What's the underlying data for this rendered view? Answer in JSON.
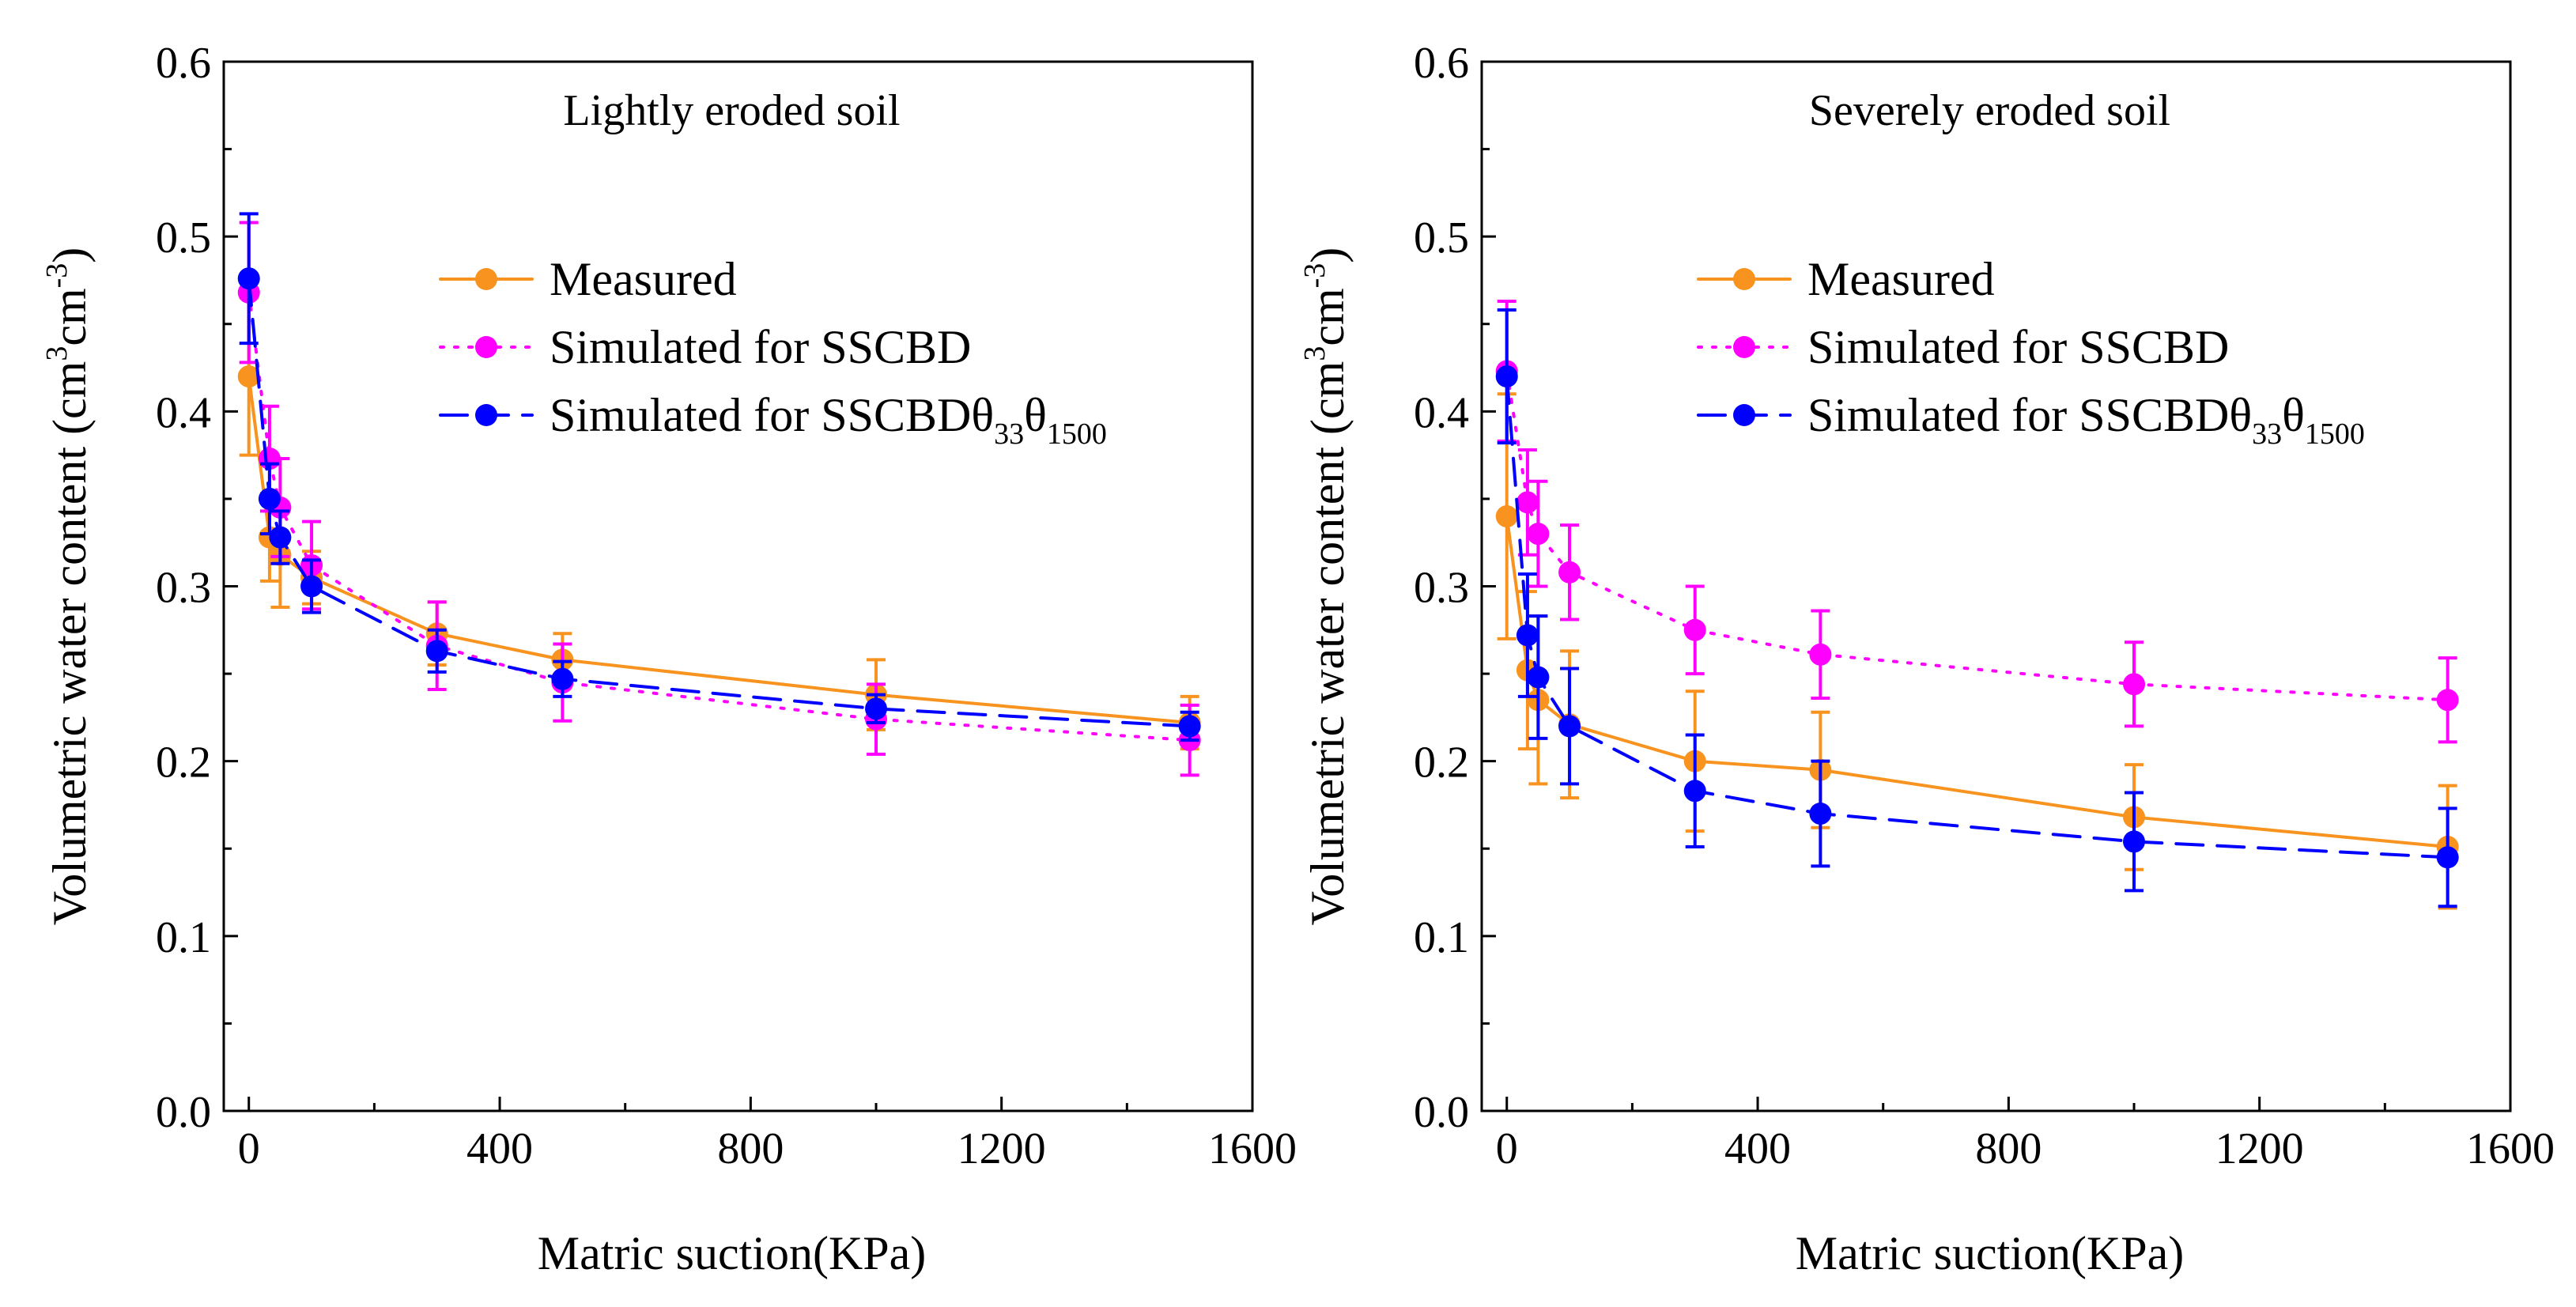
{
  "colors": {
    "measured": "#F7931E",
    "sscbd": "#FF00FF",
    "sscbd_theta": "#0000FF",
    "axis": "#000000"
  },
  "chart_data": [
    {
      "type": "line",
      "title": "Lightly eroded soil",
      "xlabel": "Matric suction(KPa)",
      "ylabel": {
        "main": "Volumetric water content (cm",
        "sup1": "3",
        "mid": "cm",
        "sup2": "-3",
        "end": ")"
      },
      "xlim": [
        -40,
        1600
      ],
      "ylim": [
        0.0,
        0.6
      ],
      "xticks": [
        0,
        400,
        800,
        1200,
        1600
      ],
      "xtick_labels": [
        "0",
        "400",
        "800",
        "1200",
        "1600"
      ],
      "yticks": [
        0.0,
        0.1,
        0.2,
        0.3,
        0.4,
        0.5,
        0.6
      ],
      "ytick_labels": [
        "0.0",
        "0.1",
        "0.2",
        "0.3",
        "0.4",
        "0.5",
        "0.6"
      ],
      "legend": "upper-center",
      "series": [
        {
          "key": "measured",
          "legend": {
            "base": "Measured",
            "sub1": "",
            "mid": "",
            "sub2": ""
          },
          "line_style": "solid",
          "x": [
            0,
            33,
            50,
            100,
            300,
            500,
            1000,
            1500
          ],
          "y": [
            0.42,
            0.328,
            0.318,
            0.305,
            0.273,
            0.258,
            0.238,
            0.222
          ],
          "err": [
            0.045,
            0.025,
            0.03,
            0.015,
            0.018,
            0.015,
            0.02,
            0.015
          ]
        },
        {
          "key": "sscbd",
          "legend": {
            "base": "Simulated  for SSCBD",
            "sub1": "",
            "mid": "",
            "sub2": ""
          },
          "line_style": "dotted",
          "x": [
            0,
            33,
            50,
            100,
            300,
            500,
            1000,
            1500
          ],
          "y": [
            0.468,
            0.373,
            0.345,
            0.312,
            0.266,
            0.245,
            0.224,
            0.212
          ],
          "err": [
            0.04,
            0.03,
            0.028,
            0.025,
            0.025,
            0.022,
            0.02,
            0.02
          ]
        },
        {
          "key": "sscbd_theta",
          "legend": {
            "base": "Simulated  for SSCBDθ",
            "sub1": "33",
            "mid": "θ",
            "sub2": "1500"
          },
          "line_style": "dashed",
          "x": [
            0,
            33,
            50,
            100,
            300,
            500,
            1000,
            1500
          ],
          "y": [
            0.476,
            0.35,
            0.328,
            0.3,
            0.263,
            0.247,
            0.23,
            0.22
          ],
          "err": [
            0.037,
            0.02,
            0.015,
            0.015,
            0.012,
            0.01,
            0.008,
            0.008
          ]
        }
      ]
    },
    {
      "type": "line",
      "title": "Severely eroded soil",
      "xlabel": "Matric suction(KPa)",
      "ylabel": {
        "main": "Volumetric water content (cm",
        "sup1": "3",
        "mid": "cm",
        "sup2": "-3",
        "end": ")"
      },
      "xlim": [
        -40,
        1600
      ],
      "ylim": [
        0.0,
        0.6
      ],
      "xticks": [
        0,
        400,
        800,
        1200,
        1600
      ],
      "xtick_labels": [
        "0",
        "400",
        "800",
        "1200",
        "1600"
      ],
      "yticks": [
        0.0,
        0.1,
        0.2,
        0.3,
        0.4,
        0.5,
        0.6
      ],
      "ytick_labels": [
        "0.0",
        "0.1",
        "0.2",
        "0.3",
        "0.4",
        "0.5",
        "0.6"
      ],
      "legend": "upper-center",
      "series": [
        {
          "key": "measured",
          "legend": {
            "base": "Measured",
            "sub1": "",
            "mid": "",
            "sub2": ""
          },
          "line_style": "solid",
          "x": [
            0,
            33,
            50,
            100,
            300,
            500,
            1000,
            1500
          ],
          "y": [
            0.34,
            0.252,
            0.235,
            0.221,
            0.2,
            0.195,
            0.168,
            0.151
          ],
          "err": [
            0.07,
            0.045,
            0.048,
            0.042,
            0.04,
            0.033,
            0.03,
            0.035
          ]
        },
        {
          "key": "sscbd",
          "legend": {
            "base": "Simulated  for SSCBD",
            "sub1": "",
            "mid": "",
            "sub2": ""
          },
          "line_style": "dotted",
          "x": [
            0,
            33,
            50,
            100,
            300,
            500,
            1000,
            1500
          ],
          "y": [
            0.423,
            0.348,
            0.33,
            0.308,
            0.275,
            0.261,
            0.244,
            0.235
          ],
          "err": [
            0.04,
            0.03,
            0.03,
            0.027,
            0.025,
            0.025,
            0.024,
            0.024
          ]
        },
        {
          "key": "sscbd_theta",
          "legend": {
            "base": "Simulated  for SSCBDθ",
            "sub1": "33",
            "mid": "θ",
            "sub2": "1500"
          },
          "line_style": "dashed",
          "x": [
            0,
            33,
            50,
            100,
            300,
            500,
            1000,
            1500
          ],
          "y": [
            0.42,
            0.272,
            0.248,
            0.22,
            0.183,
            0.17,
            0.154,
            0.145
          ],
          "err": [
            0.038,
            0.035,
            0.035,
            0.033,
            0.032,
            0.03,
            0.028,
            0.028
          ]
        }
      ]
    }
  ]
}
